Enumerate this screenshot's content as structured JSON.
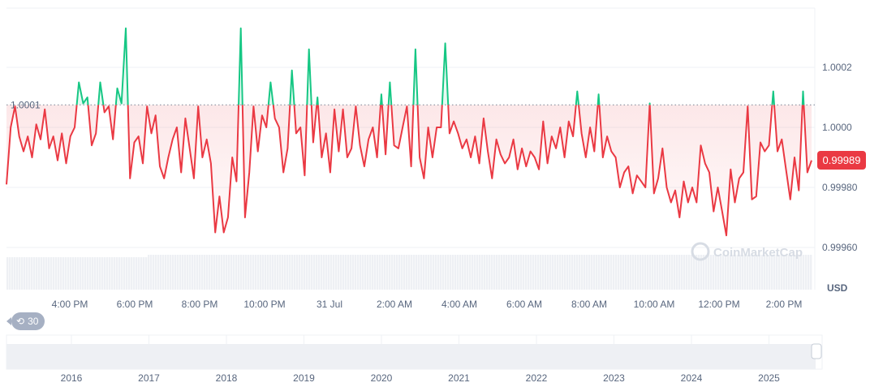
{
  "chart_data": {
    "type": "line",
    "title": "",
    "currency_label": "USD",
    "reference_value": 1.000075,
    "reference_label": "1.0001",
    "current_price_label": "0.99989",
    "watermark": "CoinMarketCap",
    "history_badge": "30",
    "ylim": [
      0.9995,
      1.00035
    ],
    "y_ticks": [
      {
        "v": 1.0002,
        "label": "1.0002"
      },
      {
        "v": 1.0,
        "label": "1.0000"
      },
      {
        "v": 0.9998,
        "label": "0.99980"
      },
      {
        "v": 0.9996,
        "label": "0.99960"
      }
    ],
    "x_ticks": [
      {
        "h": 1.0,
        "label": "4:00 PM"
      },
      {
        "h": 3.0,
        "label": "6:00 PM"
      },
      {
        "h": 5.0,
        "label": "8:00 PM"
      },
      {
        "h": 7.0,
        "label": "10:00 PM"
      },
      {
        "h": 9.0,
        "label": "31 Jul"
      },
      {
        "h": 11.0,
        "label": "2:00 AM"
      },
      {
        "h": 13.0,
        "label": "4:00 AM"
      },
      {
        "h": 15.0,
        "label": "6:00 AM"
      },
      {
        "h": 17.0,
        "label": "8:00 AM"
      },
      {
        "h": 19.0,
        "label": "10:00 AM"
      },
      {
        "h": 21.0,
        "label": "12:00 PM"
      },
      {
        "h": 23.0,
        "label": "2:00 PM"
      }
    ],
    "x_range_hours": [
      -0.95,
      23.85
    ],
    "navigator_years": [
      "2016",
      "2017",
      "2018",
      "2019",
      "2020",
      "2021",
      "2022",
      "2023",
      "2024",
      "2025"
    ],
    "colors": {
      "up": "#16c784",
      "down": "#ea3943",
      "grid": "#eff2f5",
      "text": "#58667e"
    },
    "values": [
      0.99981,
      1.0,
      1.00007,
      0.99997,
      0.99992,
      0.99997,
      0.9999,
      1.00001,
      0.99996,
      1.00006,
      0.99993,
      0.99997,
      0.99989,
      0.99998,
      0.99988,
      0.99997,
      1.0,
      1.00015,
      1.00008,
      1.0001,
      0.99994,
      0.99998,
      1.00015,
      1.00005,
      1.00007,
      0.99996,
      1.00013,
      1.00008,
      1.00033,
      0.99983,
      0.99995,
      0.99997,
      0.99988,
      1.00007,
      0.99998,
      1.00004,
      0.99987,
      0.99983,
      0.9999,
      0.99996,
      1.0,
      0.99985,
      1.00003,
      0.99993,
      0.99983,
      1.00007,
      0.9999,
      0.99996,
      0.99988,
      0.99965,
      0.99977,
      0.99965,
      0.9997,
      0.9999,
      0.99982,
      1.00033,
      0.9997,
      0.99985,
      1.00007,
      0.99992,
      1.00004,
      1.0,
      1.00015,
      1.00003,
      1.0,
      0.99985,
      0.99993,
      1.00019,
      0.99998,
      1.0,
      0.99984,
      1.00026,
      0.99995,
      1.0001,
      0.9999,
      0.99998,
      0.99985,
      1.00006,
      0.99992,
      1.00006,
      0.9999,
      0.99993,
      1.00007,
      0.99994,
      0.99987,
      0.99996,
      1.0,
      0.9999,
      1.00011,
      0.99991,
      1.00015,
      0.99994,
      0.99993,
      1.0,
      1.00007,
      0.99987,
      1.00026,
      0.9999,
      0.99983,
      1.0,
      0.9999,
      1.0,
      1.0,
      1.00028,
      0.99998,
      1.00002,
      0.99998,
      0.99993,
      0.99996,
      0.9999,
      0.99997,
      0.99988,
      1.00003,
      0.99992,
      0.99983,
      0.99996,
      0.99991,
      0.99988,
      0.9999,
      0.99996,
      0.99986,
      0.99993,
      0.99987,
      0.99992,
      0.9999,
      0.99986,
      1.00002,
      0.99988,
      0.99997,
      0.99993,
      1.0,
      0.9999,
      1.00002,
      0.99997,
      1.00012,
      0.99998,
      0.9999,
      1.0,
      0.99992,
      1.00011,
      0.9999,
      0.99997,
      0.99992,
      0.9999,
      0.9998,
      0.99985,
      0.99987,
      0.99978,
      0.99984,
      0.99982,
      0.9998,
      1.00008,
      0.99978,
      0.99983,
      0.99993,
      0.9998,
      0.99975,
      0.99979,
      0.9997,
      0.99982,
      0.99975,
      0.9998,
      0.99975,
      0.99994,
      0.99988,
      0.99985,
      0.99972,
      0.9998,
      0.99972,
      0.99964,
      0.99986,
      0.99975,
      0.99983,
      0.99985,
      1.00007,
      0.99976,
      0.99977,
      0.99995,
      0.99992,
      0.99994,
      1.00012,
      0.99992,
      0.99996,
      0.99986,
      0.99976,
      0.9999,
      0.99979,
      1.00012,
      0.99985,
      0.99989
    ]
  }
}
